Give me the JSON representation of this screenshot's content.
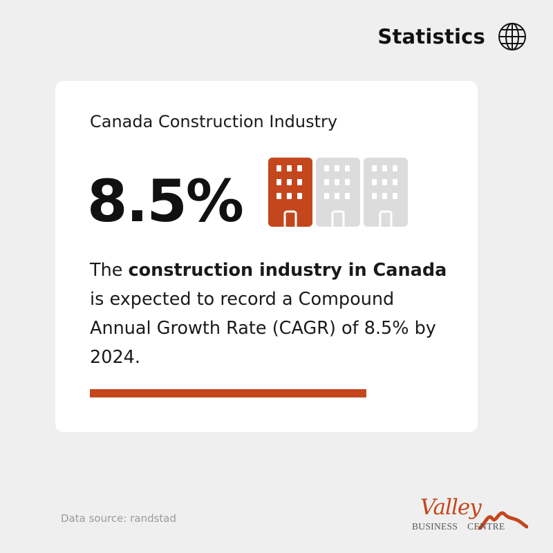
{
  "header": {
    "title": "Statistics",
    "icon": "globe-icon"
  },
  "card": {
    "title": "Canada Construction Industry",
    "stat": "8.5%",
    "description": {
      "part1": "The ",
      "bold1": "construction industry in Canada",
      "part2": " is expected to record a Compound Annual Growth Rate (CAGR) of 8.5% by 2024."
    },
    "buildings": {
      "highlighted_count": 1,
      "total_count": 3
    }
  },
  "footer": {
    "source": "Data source: randstad"
  },
  "logo": {
    "word": "Valley",
    "tagline_left": "BUSINESS",
    "tagline_right": "CENTRE"
  },
  "colors": {
    "accent": "#c4461d",
    "muted": "#dcdcdc",
    "background": "#efefef",
    "card": "#ffffff"
  }
}
